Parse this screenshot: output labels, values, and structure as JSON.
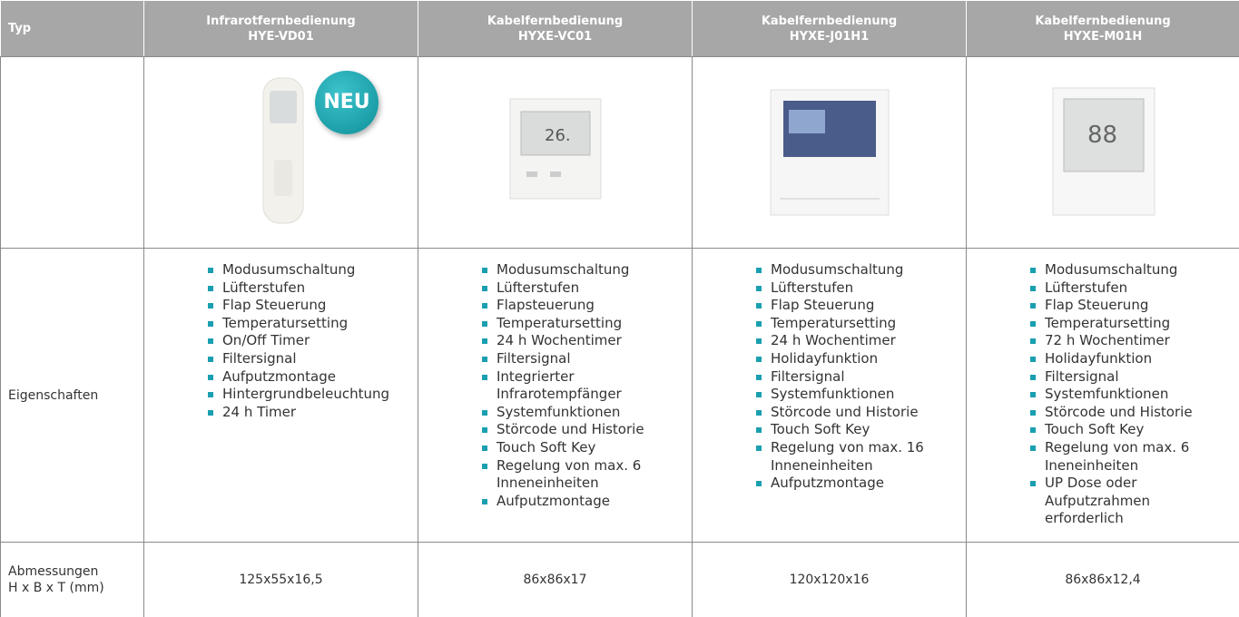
{
  "table": {
    "header": {
      "label": "Typ",
      "columns": [
        {
          "name": "Infrarotfernbedienung",
          "model": "HYE-VD01"
        },
        {
          "name": "Kabelfernbedienung",
          "model": "HYXE-VC01"
        },
        {
          "name": "Kabelfernbedienung",
          "model": "HYXE-J01H1"
        },
        {
          "name": "Kabelfernbedienung",
          "model": "HYXE-M01H"
        }
      ]
    },
    "badge": "NEU",
    "features": {
      "label": "Eigenschaften",
      "columns": [
        [
          "Modusumschaltung",
          "Lüfterstufen",
          "Flap Steuerung",
          "Temperatursetting",
          "On/Off Timer",
          "Filtersignal",
          "Aufputzmontage",
          "Hintergrundbeleuchtung",
          "24 h Timer"
        ],
        [
          "Modusumschaltung",
          "Lüfterstufen",
          "Flapsteuerung",
          "Temperatursetting",
          "24 h Wochentimer",
          "Filtersignal",
          "Integrierter Infrarotempfänger",
          "Systemfunktionen",
          "Störcode und Historie",
          "Touch Soft Key",
          "Regelung von max. 6 Inneneinheiten",
          "Aufputzmontage"
        ],
        [
          "Modusumschaltung",
          "Lüfterstufen",
          "Flap Steuerung",
          "Temperatursetting",
          "24 h Wochentimer",
          "Holidayfunktion",
          "Filtersignal",
          "Systemfunktionen",
          "Störcode und Historie",
          "Touch Soft Key",
          "Regelung von max. 16 Inneneinheiten",
          "Aufputzmontage"
        ],
        [
          "Modusumschaltung",
          "Lüfterstufen",
          "Flap Steuerung",
          "Temperatursetting",
          "72 h Wochentimer",
          "Holidayfunktion",
          "Filtersignal",
          "Systemfunktionen",
          "Störcode und Historie",
          "Touch Soft Key",
          "Regelung von max. 6 Ineneinheiten",
          "UP Dose oder Aufputzrahmen erforderlich"
        ]
      ]
    },
    "dimensions": {
      "label": [
        "Abmessungen",
        "H x B x T (mm)"
      ],
      "values": [
        "125x55x16,5",
        "86x86x17",
        "120x120x16",
        "86x86x12,4"
      ]
    }
  }
}
